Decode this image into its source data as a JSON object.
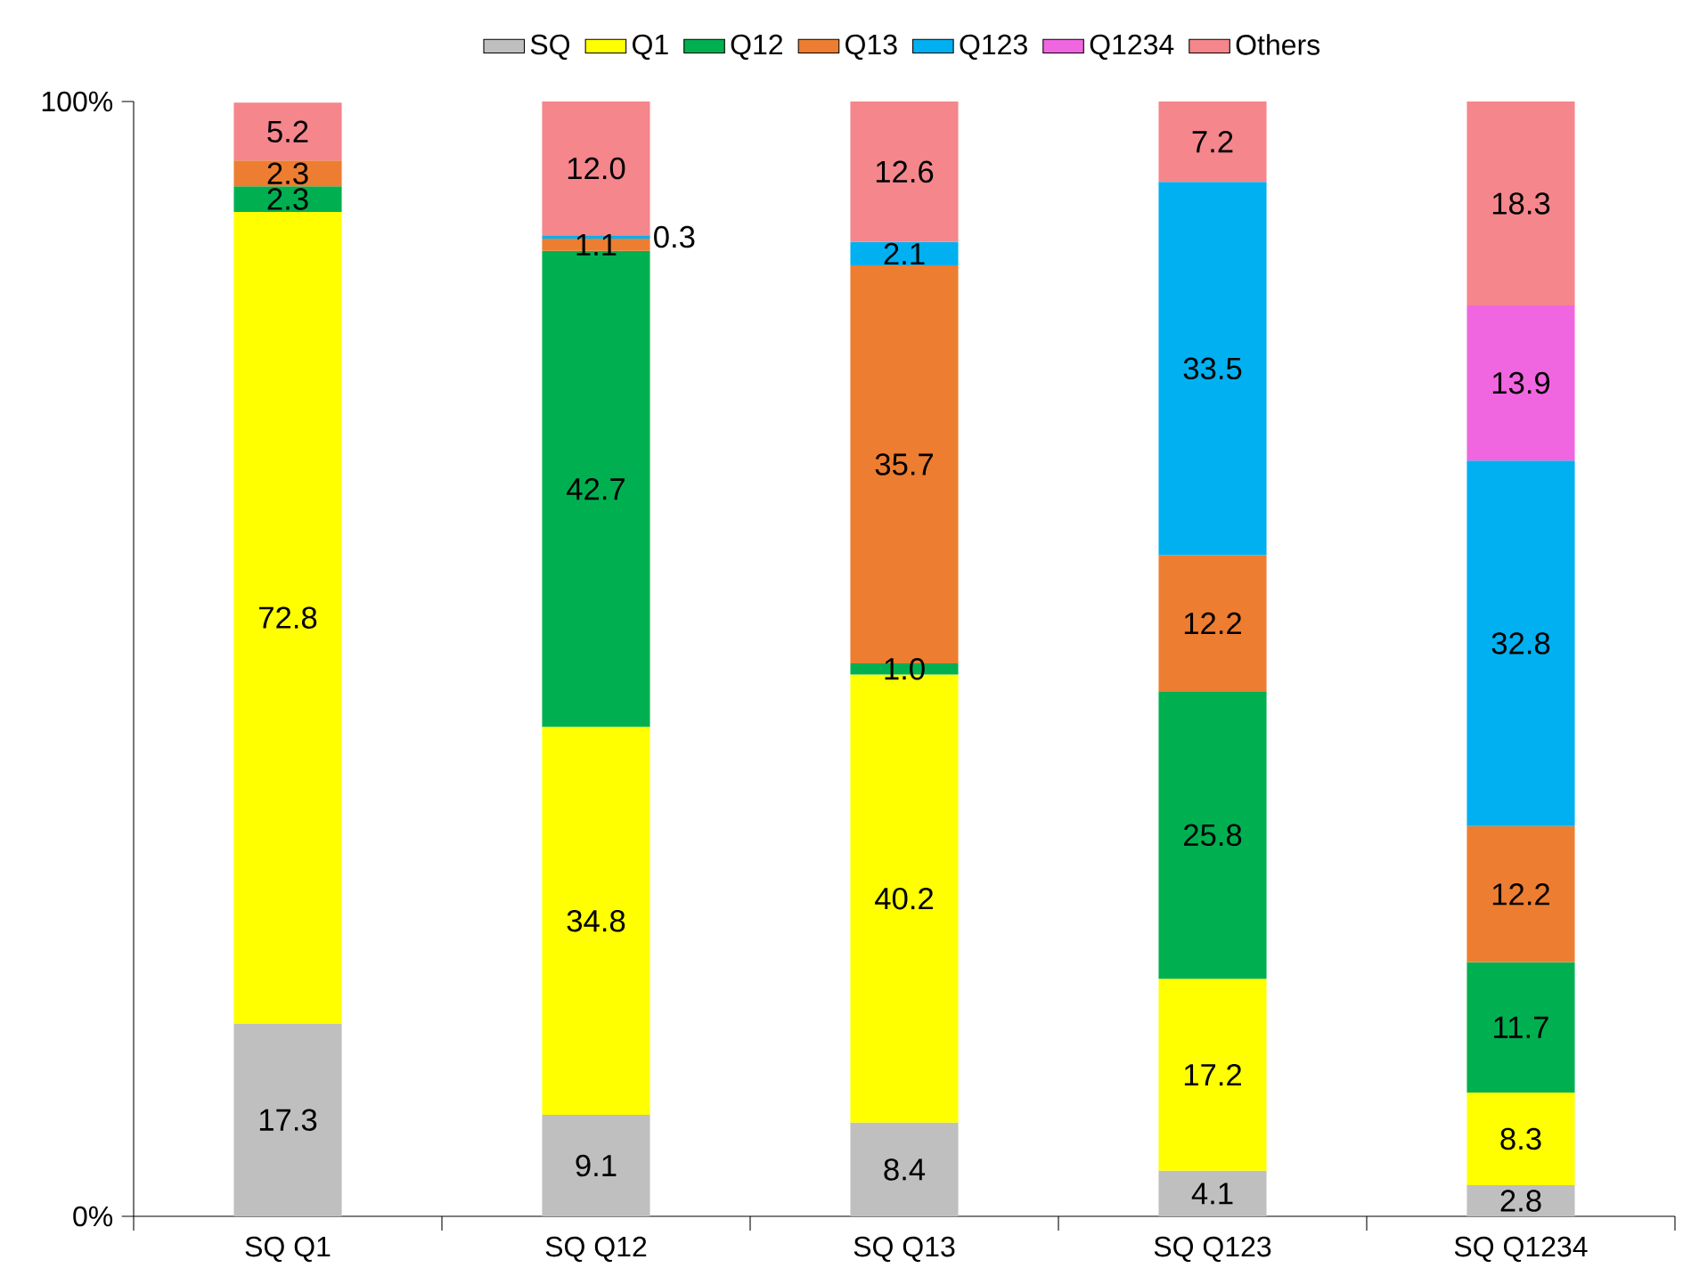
{
  "chart_data": {
    "type": "bar",
    "stacked": true,
    "legend": "top",
    "categories": [
      "SQ Q1",
      "SQ Q12",
      "SQ Q13",
      "SQ Q123",
      "SQ Q1234"
    ],
    "ylim": [
      0,
      100
    ],
    "yticks": [
      {
        "value": 0,
        "label": "0%"
      },
      {
        "value": 100,
        "label": "100%"
      }
    ],
    "series": [
      {
        "name": "SQ",
        "color": "#bfbfbf",
        "values": [
          17.3,
          9.1,
          8.4,
          4.1,
          2.8
        ],
        "value_labels": [
          "17.3",
          "9.1",
          "8.4",
          "4.1",
          "2.8"
        ]
      },
      {
        "name": "Q1",
        "color": "#ffff00",
        "values": [
          72.8,
          34.8,
          40.2,
          17.2,
          8.3
        ],
        "value_labels": [
          "72.8",
          "34.8",
          "40.2",
          "17.2",
          "8.3"
        ]
      },
      {
        "name": "Q12",
        "color": "#00b050",
        "values": [
          2.3,
          42.7,
          1.0,
          25.8,
          11.7
        ],
        "value_labels": [
          "2.3",
          "42.7",
          "1.0",
          "25.8",
          "11.7"
        ]
      },
      {
        "name": "Q13",
        "color": "#ed7d31",
        "values": [
          2.3,
          1.1,
          35.7,
          12.2,
          12.2
        ],
        "value_labels": [
          "2.3",
          "1.1",
          "35.7",
          "12.2",
          "12.2"
        ]
      },
      {
        "name": "Q123",
        "color": "#00b0f0",
        "values": [
          null,
          0.3,
          2.1,
          33.5,
          32.8
        ],
        "value_labels": [
          null,
          "0.3",
          "2.1",
          "33.5",
          "32.8"
        ]
      },
      {
        "name": "Q1234",
        "color": "#f066e0",
        "values": [
          null,
          null,
          null,
          null,
          13.9
        ],
        "value_labels": [
          null,
          null,
          null,
          null,
          "13.9"
        ]
      },
      {
        "name": "Others",
        "color": "#f4868c",
        "values": [
          5.2,
          12.0,
          12.6,
          7.2,
          18.3
        ],
        "value_labels": [
          "5.2",
          "12.0",
          "12.6",
          "7.2",
          "18.3"
        ]
      }
    ]
  }
}
